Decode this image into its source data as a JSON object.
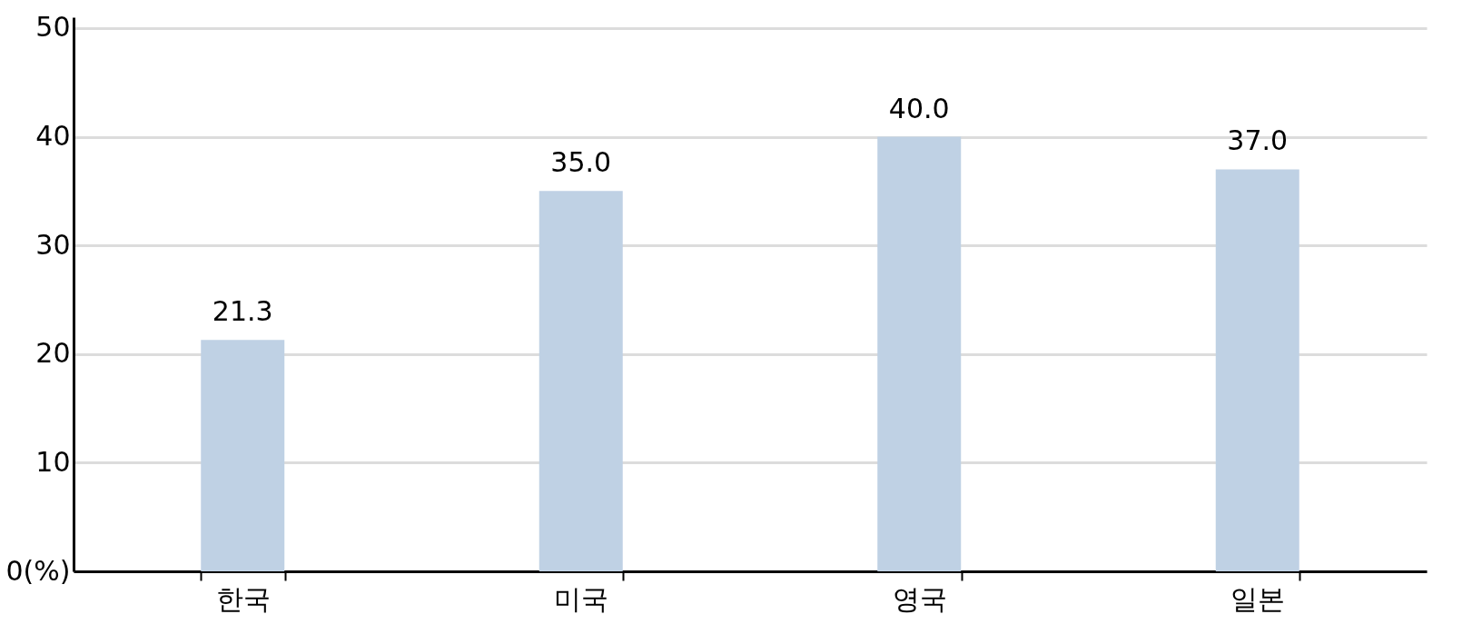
{
  "chart_data": {
    "type": "bar",
    "categories": [
      "한국",
      "미국",
      "영국",
      "일본"
    ],
    "values": [
      21.3,
      35.0,
      40.0,
      37.0
    ],
    "color": "#bfd1e4",
    "ylim": [
      0,
      51
    ],
    "yticks": [
      {
        "value": 0,
        "label": "0(%)"
      },
      10,
      20,
      30,
      40,
      50
    ],
    "grid": "y",
    "value_labels": [
      "21.3",
      "35.0",
      "40.0",
      "37.0"
    ]
  }
}
